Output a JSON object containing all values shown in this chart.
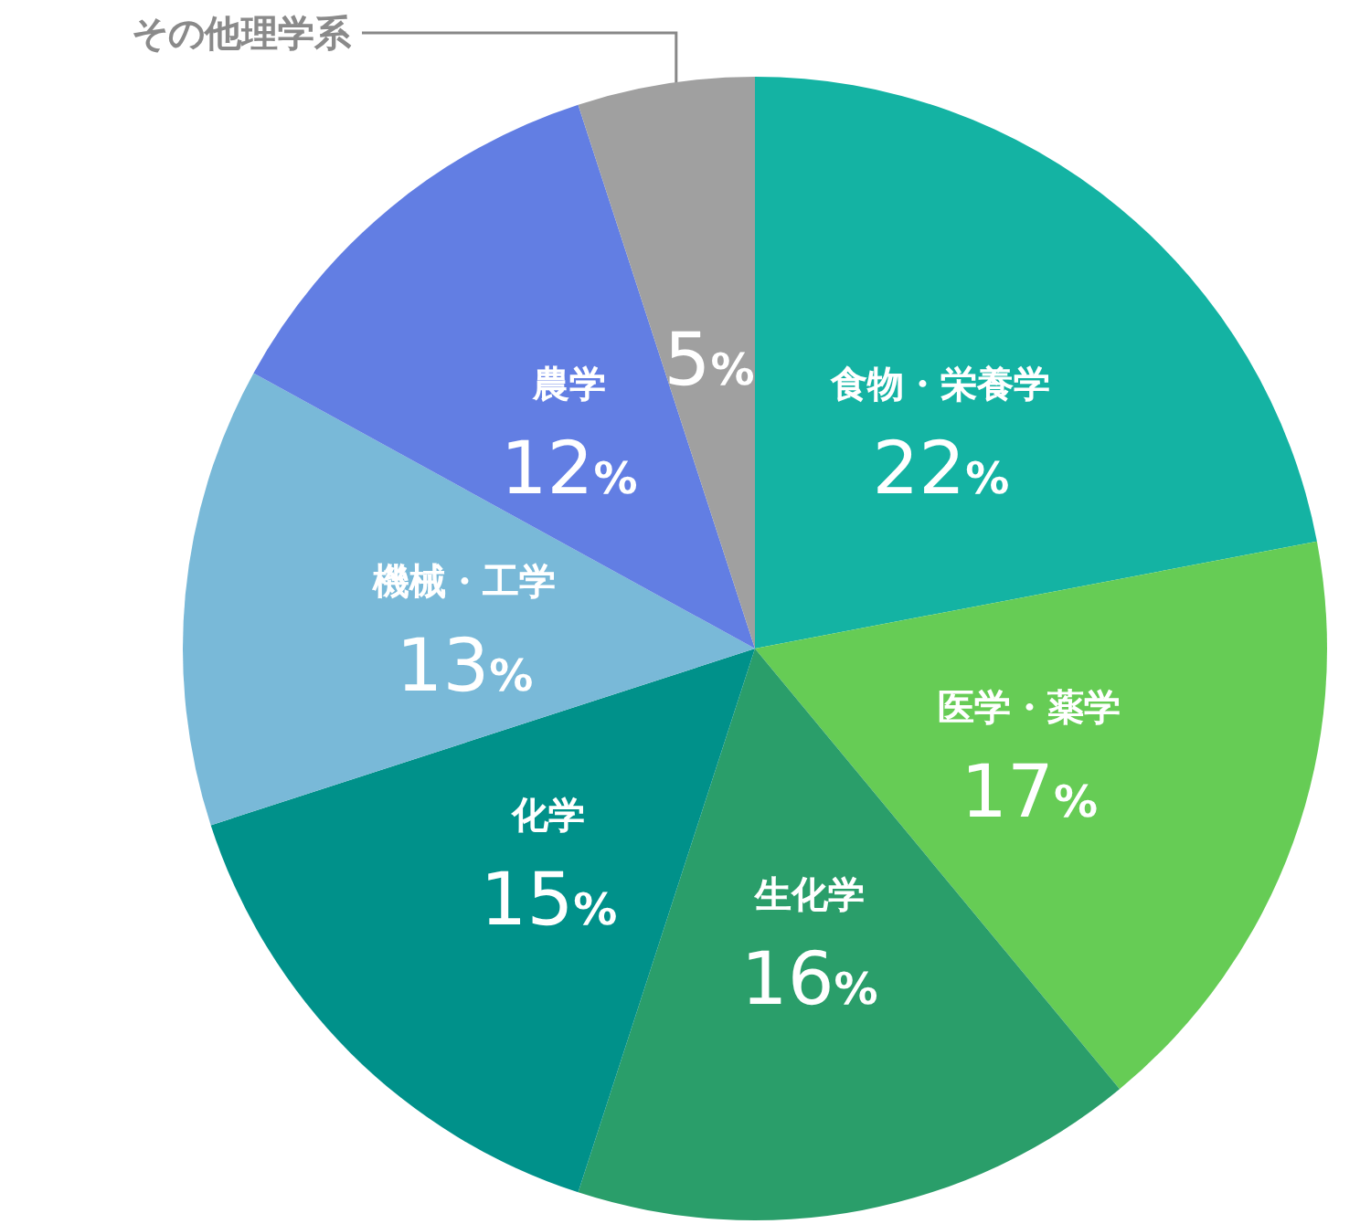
{
  "chart_data": {
    "type": "pie",
    "categories": [
      "食物・栄養学",
      "医学・薬学",
      "生化学",
      "化学",
      "機械・工学",
      "農学",
      "その他理学系"
    ],
    "values": [
      22,
      17,
      16,
      15,
      13,
      12,
      5
    ],
    "value_labels": [
      "22%",
      "17%",
      "16%",
      "15%",
      "13%",
      "12%",
      "5%"
    ],
    "colors": [
      "#14b3a3",
      "#66cc55",
      "#2a9e6a",
      "#00918a",
      "#79b9d8",
      "#627ee3",
      "#a0a0a0"
    ]
  }
}
